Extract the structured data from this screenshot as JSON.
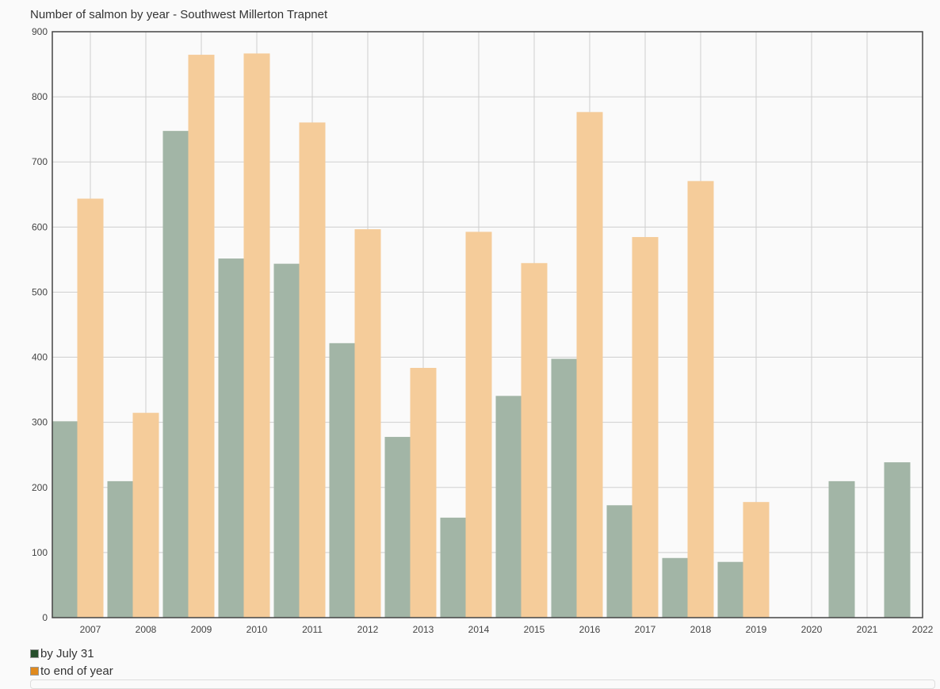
{
  "chart_data": {
    "type": "bar",
    "title": "Number of salmon by year - Southwest Millerton Trapnet",
    "xlabel": "",
    "ylabel": "",
    "ylim": [
      0,
      900
    ],
    "yticks": [
      0,
      100,
      200,
      300,
      400,
      500,
      600,
      700,
      800,
      900
    ],
    "grid": true,
    "legend_position": "bottom-left",
    "categories": [
      "2007",
      "2008",
      "2009",
      "2010",
      "2011",
      "2012",
      "2013",
      "2014",
      "2015",
      "2016",
      "2017",
      "2018",
      "2019",
      "2020",
      "2021",
      "2022"
    ],
    "series": [
      {
        "name": "by July 31",
        "color": "#a2b5a6",
        "swatch_color": "#274f2c",
        "values": [
          301,
          209,
          747,
          551,
          543,
          421,
          277,
          153,
          340,
          397,
          172,
          91,
          85,
          0,
          209,
          238
        ]
      },
      {
        "name": "to end of year",
        "color": "#f5cc9a",
        "swatch_color": "#e08a1e",
        "values": [
          643,
          314,
          864,
          866,
          760,
          596,
          383,
          592,
          544,
          776,
          584,
          670,
          177,
          0,
          0,
          0
        ]
      }
    ]
  }
}
